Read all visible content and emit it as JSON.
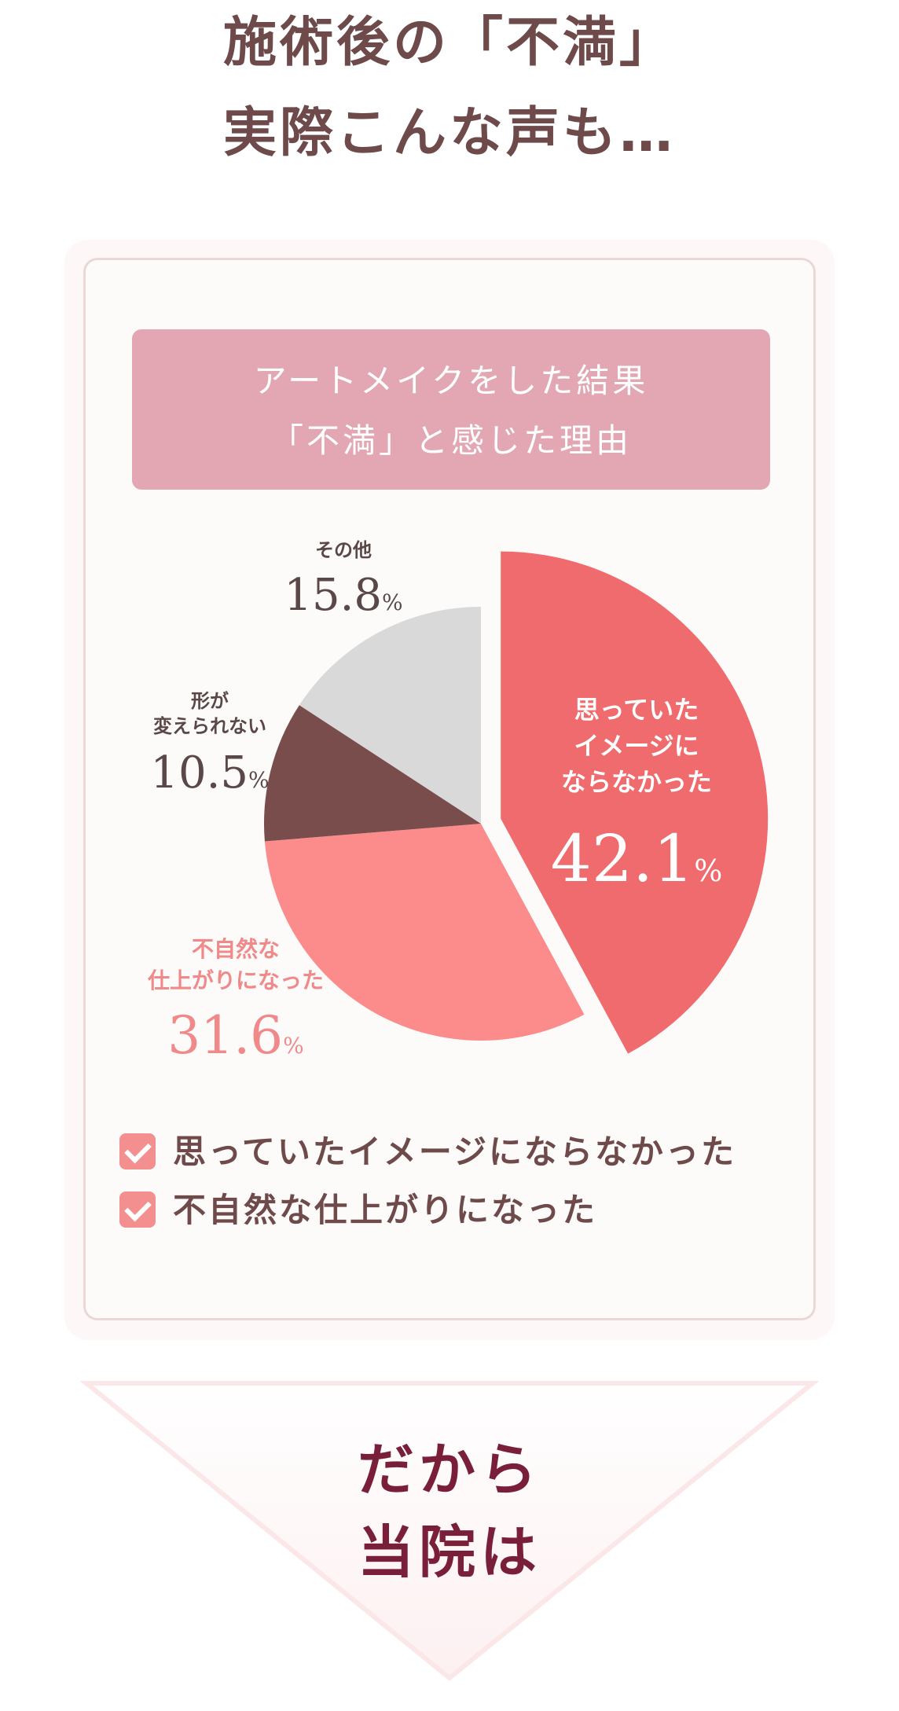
{
  "headline": {
    "line1": "施術後の「不満」",
    "line2": "実際こんな声も…"
  },
  "checklist": [
    "思っていたイメージにならなかった",
    "不自然な仕上がりになった"
  ],
  "conclusion": {
    "line1": "だから",
    "line2": "当院は"
  },
  "chart_data": {
    "type": "pie",
    "title": "アートメイクをした結果",
    "subtitle": "「不満」と感じた理由",
    "unit": "%",
    "slices": [
      {
        "label_lines": [
          "思っていた",
          "イメージに",
          "ならなかった"
        ],
        "value": 42.1,
        "value_text": "42.1",
        "color": "#f06b6d",
        "exploded": true
      },
      {
        "label_lines": [
          "不自然な",
          "仕上がりになった"
        ],
        "value": 31.6,
        "value_text": "31.6",
        "color": "#fc8c8c",
        "exploded": false
      },
      {
        "label_lines": [
          "形が",
          "変えられない"
        ],
        "value": 10.5,
        "value_text": "10.5",
        "color": "#7a4d4d",
        "exploded": false
      },
      {
        "label_lines": [
          "その他"
        ],
        "value": 15.8,
        "value_text": "15.8",
        "color": "#d9d9d9",
        "exploded": false
      }
    ]
  },
  "colors": {
    "headline": "#6e4a4a",
    "title_band": "#e2a7b3",
    "checkbox": "#f48f8f",
    "conclusion": "#7a1f3a"
  }
}
